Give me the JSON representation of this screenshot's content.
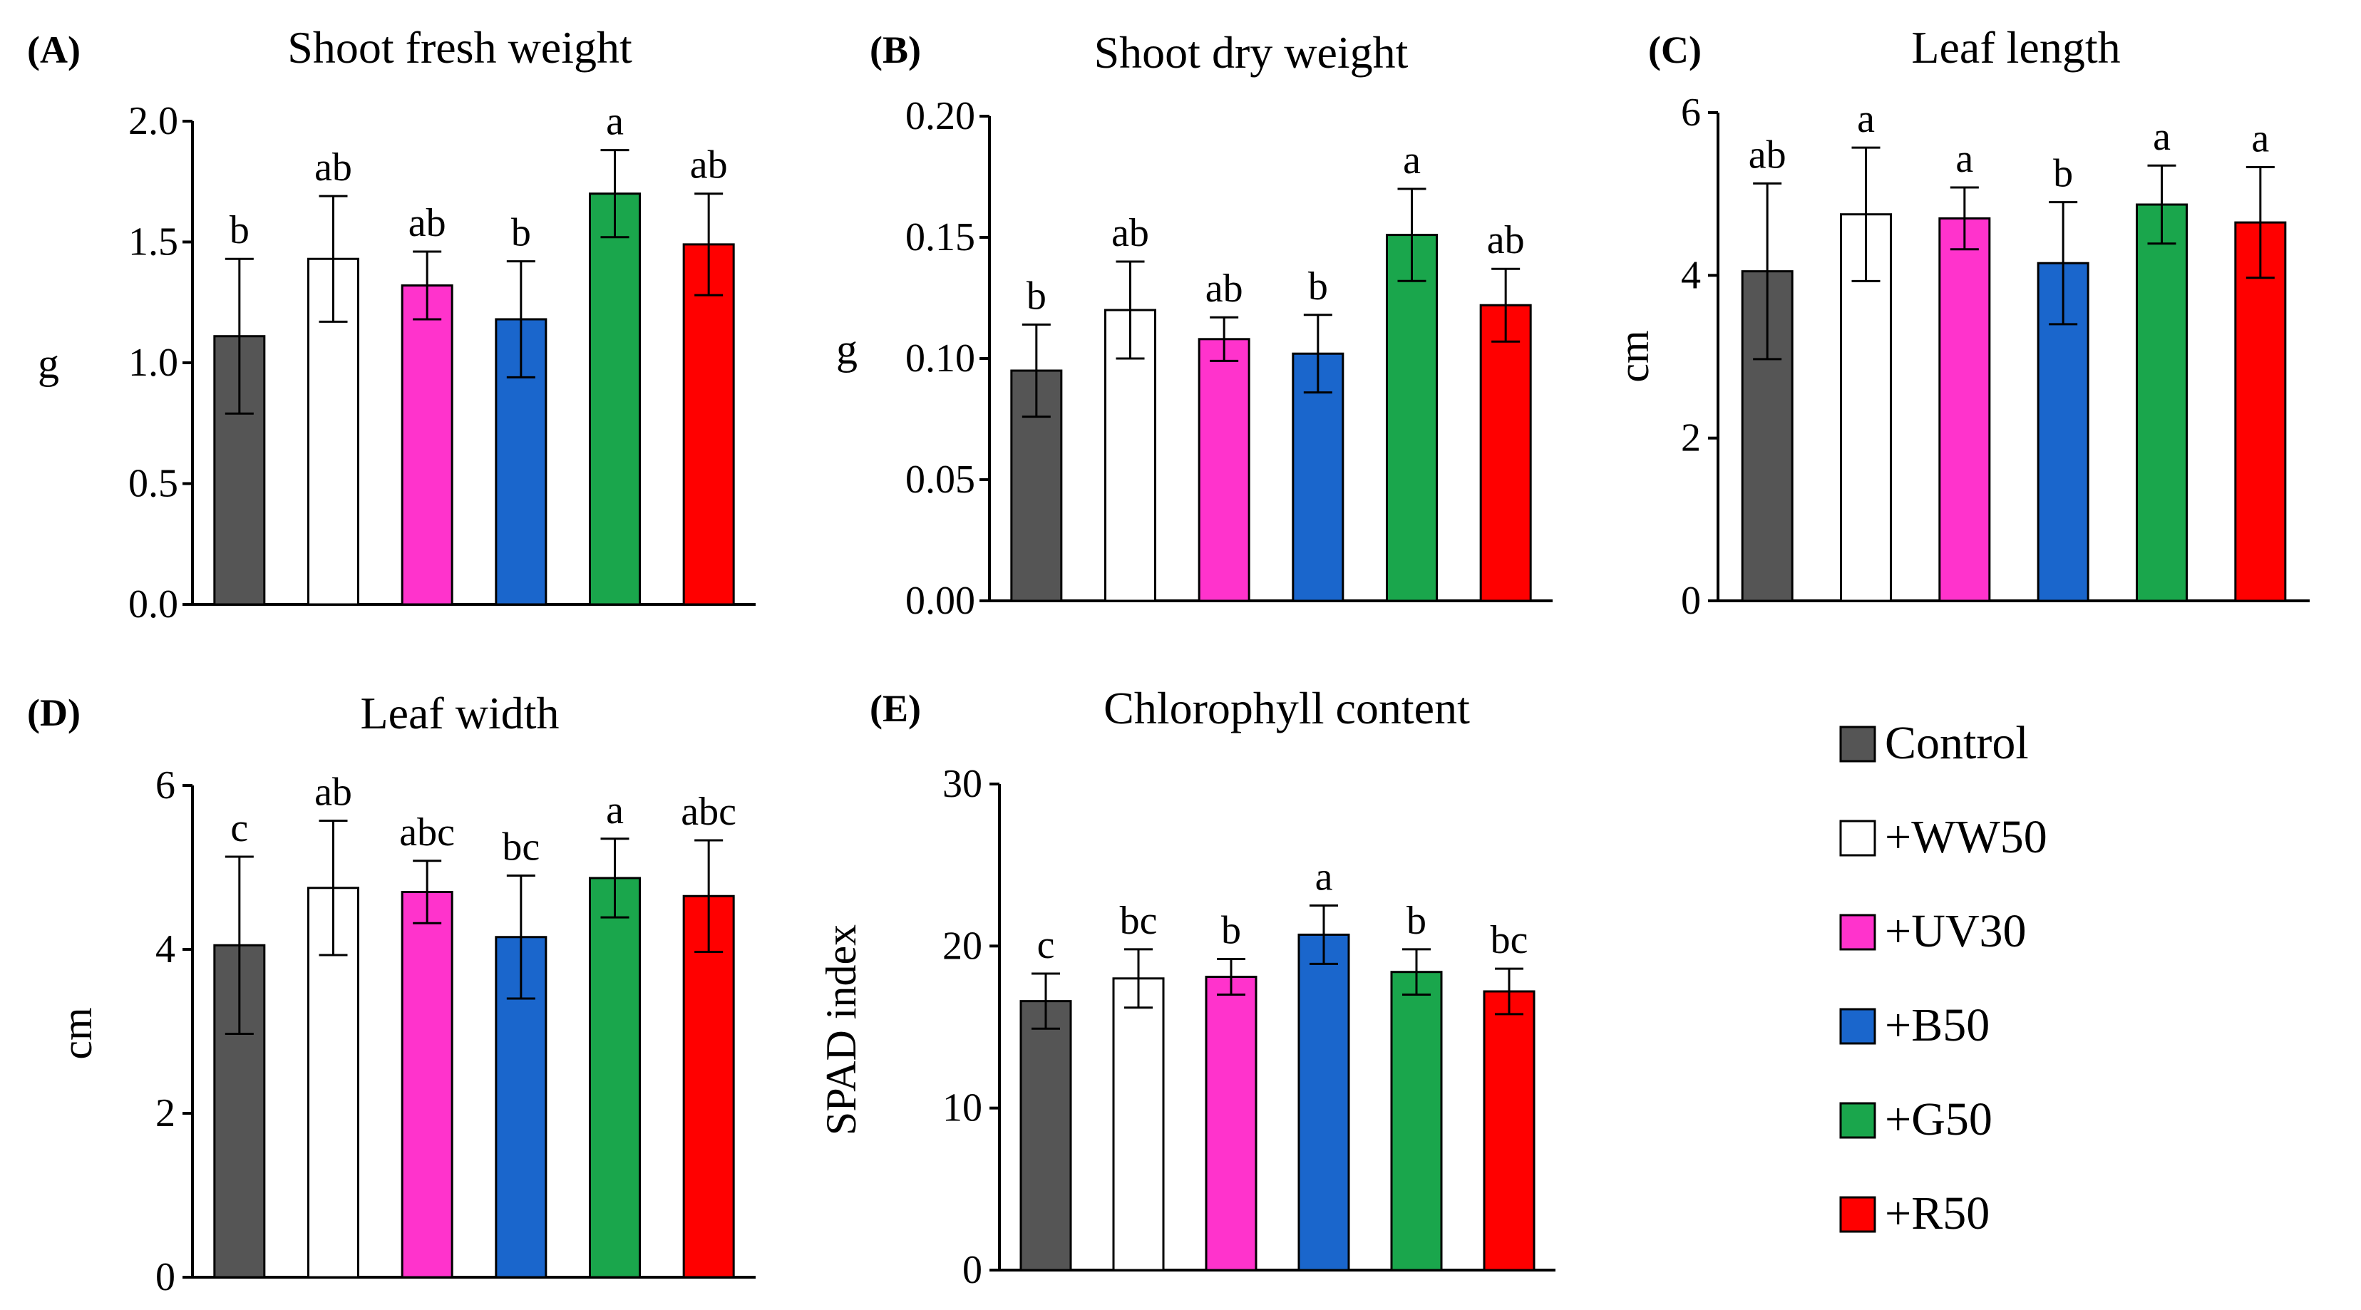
{
  "legend": {
    "items": [
      {
        "label": "Control",
        "color": "#555555"
      },
      {
        "label": "+WW50",
        "color": "#ffffff"
      },
      {
        "label": "+UV30",
        "color": "#ff33cc"
      },
      {
        "label": "+B50",
        "color": "#1a66cc"
      },
      {
        "label": "+G50",
        "color": "#1aa64c"
      },
      {
        "label": "+R50",
        "color": "#ff0000"
      }
    ]
  },
  "chart_data": [
    {
      "type": "bar",
      "panel": "(A)",
      "title": "Shoot fresh weight",
      "ylabel": "g",
      "categories": [
        "Control",
        "+WW50",
        "+UV30",
        "+B50",
        "+G50",
        "+R50"
      ],
      "values": [
        1.11,
        1.43,
        1.32,
        1.18,
        1.7,
        1.49
      ],
      "errors": [
        0.32,
        0.26,
        0.14,
        0.24,
        0.18,
        0.21
      ],
      "significance": [
        "b",
        "ab",
        "ab",
        "b",
        "a",
        "ab"
      ],
      "ylim": [
        0,
        2.0
      ],
      "yticks": [
        "0.0",
        "0.5",
        "1.0",
        "1.5",
        "2.0"
      ]
    },
    {
      "type": "bar",
      "panel": "(B)",
      "title": "Shoot dry weight",
      "ylabel": "g",
      "categories": [
        "Control",
        "+WW50",
        "+UV30",
        "+B50",
        "+G50",
        "+R50"
      ],
      "values": [
        0.095,
        0.12,
        0.108,
        0.102,
        0.151,
        0.122
      ],
      "errors": [
        0.019,
        0.02,
        0.009,
        0.016,
        0.019,
        0.015
      ],
      "significance": [
        "b",
        "ab",
        "ab",
        "b",
        "a",
        "ab"
      ],
      "ylim": [
        0,
        0.2
      ],
      "yticks": [
        "0.00",
        "0.05",
        "0.10",
        "0.15",
        "0.20"
      ]
    },
    {
      "type": "bar",
      "panel": "(C)",
      "title": "Leaf length",
      "ylabel": "cm",
      "categories": [
        "Control",
        "+WW50",
        "+UV30",
        "+B50",
        "+G50",
        "+R50"
      ],
      "values": [
        4.05,
        4.75,
        4.7,
        4.15,
        4.87,
        4.65
      ],
      "errors": [
        1.08,
        0.82,
        0.38,
        0.75,
        0.48,
        0.68
      ],
      "significance": [
        "ab",
        "a",
        "a",
        "b",
        "a",
        "a"
      ],
      "ylim": [
        0,
        6
      ],
      "yticks": [
        "0",
        "2",
        "4",
        "6"
      ]
    },
    {
      "type": "bar",
      "panel": "(D)",
      "title": "Leaf width",
      "ylabel": "cm",
      "categories": [
        "Control",
        "+WW50",
        "+UV30",
        "+B50",
        "+G50",
        "+R50"
      ],
      "values": [
        4.05,
        4.75,
        4.7,
        4.15,
        4.87,
        4.65
      ],
      "errors": [
        1.08,
        0.82,
        0.38,
        0.75,
        0.48,
        0.68
      ],
      "significance": [
        "c",
        "ab",
        "abc",
        "bc",
        "a",
        "abc"
      ],
      "ylim": [
        0,
        6
      ],
      "yticks": [
        "0",
        "2",
        "4",
        "6"
      ]
    },
    {
      "type": "bar",
      "panel": "(E)",
      "title": "Chlorophyll content",
      "ylabel": "SPAD index",
      "categories": [
        "Control",
        "+WW50",
        "+UV30",
        "+B50",
        "+G50",
        "+R50"
      ],
      "values": [
        16.6,
        18.0,
        18.1,
        20.7,
        18.4,
        17.2
      ],
      "errors": [
        1.7,
        1.8,
        1.1,
        1.8,
        1.4,
        1.4
      ],
      "significance": [
        "c",
        "bc",
        "b",
        "a",
        "b",
        "bc"
      ],
      "ylim": [
        0,
        30
      ],
      "yticks": [
        "0",
        "10",
        "20",
        "30"
      ]
    }
  ]
}
